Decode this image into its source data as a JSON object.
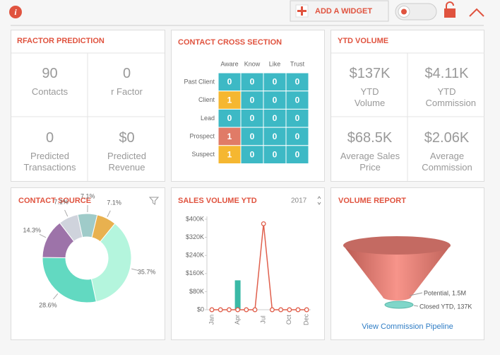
{
  "toolbar": {
    "add_widget": "ADD A WIDGET"
  },
  "rfactor": {
    "title": "RFACTOR PREDICTION",
    "cells": [
      {
        "value": "90",
        "label": "Contacts"
      },
      {
        "value": "0",
        "label": "r Factor"
      },
      {
        "value": "0",
        "label": "Predicted Transactions"
      },
      {
        "value": "$0",
        "label": "Predicted Revenue"
      }
    ]
  },
  "cross": {
    "title": "CONTACT CROSS SECTION",
    "columns": [
      "Aware",
      "Know",
      "Like",
      "Trust"
    ],
    "rows": [
      {
        "label": "Past Client",
        "values": [
          0,
          0,
          0,
          0
        ],
        "colors": [
          "#3db9c5",
          "#3db9c5",
          "#3db9c5",
          "#3db9c5"
        ]
      },
      {
        "label": "Client",
        "values": [
          1,
          0,
          0,
          0
        ],
        "colors": [
          "#f5b731",
          "#3db9c5",
          "#3db9c5",
          "#3db9c5"
        ]
      },
      {
        "label": "Lead",
        "values": [
          0,
          0,
          0,
          0
        ],
        "colors": [
          "#3db9c5",
          "#3db9c5",
          "#3db9c5",
          "#3db9c5"
        ]
      },
      {
        "label": "Prospect",
        "values": [
          1,
          0,
          0,
          0
        ],
        "colors": [
          "#e07b67",
          "#3db9c5",
          "#3db9c5",
          "#3db9c5"
        ]
      },
      {
        "label": "Suspect",
        "values": [
          1,
          0,
          0,
          0
        ],
        "colors": [
          "#f5b731",
          "#3db9c5",
          "#3db9c5",
          "#3db9c5"
        ]
      }
    ]
  },
  "ytd": {
    "title": "YTD VOLUME",
    "cells": [
      {
        "value": "$137K",
        "label": "YTD Volume"
      },
      {
        "value": "$4.11K",
        "label": "YTD Commission"
      },
      {
        "value": "$68.5K",
        "label": "Average Sales Price"
      },
      {
        "value": "$2.06K",
        "label": "Average Commission"
      }
    ]
  },
  "contact_source": {
    "type": "pie",
    "title": "CONTACT SOURCE",
    "values": [
      7.1,
      7.1,
      35.7,
      28.6,
      14.3,
      7.1
    ],
    "value_labels": [
      "7.1%",
      "7.1%",
      "35.7%",
      "28.6%",
      "14.3%",
      "7.1%"
    ],
    "colors": [
      "#9fcbc9",
      "#e8b14f",
      "#b4f5dd",
      "#62d9c1",
      "#9d73a9",
      "#cfd3dc"
    ]
  },
  "sales": {
    "type": "bar_line",
    "title": "SALES VOLUME YTD",
    "year": "2017",
    "categories": [
      "Jan",
      null,
      null,
      "Apr",
      null,
      null,
      "Jul",
      null,
      null,
      "Oct",
      null,
      "Dec"
    ],
    "series": [
      {
        "type": "bar",
        "color": "#3ab9a6",
        "values": [
          0,
          0,
          0,
          130000,
          0,
          0,
          0,
          0,
          0,
          0,
          0,
          0
        ]
      },
      {
        "type": "line",
        "color": "#e0604d",
        "values": [
          0,
          0,
          0,
          0,
          0,
          0,
          380000,
          0,
          0,
          0,
          0,
          0
        ]
      }
    ],
    "ylim": [
      0,
      400000
    ],
    "yticks": [
      {
        "value": 0,
        "label": "$0"
      },
      {
        "value": 80000,
        "label": "$80K"
      },
      {
        "value": 160000,
        "label": "$160K"
      },
      {
        "value": 240000,
        "label": "$240K"
      },
      {
        "value": 320000,
        "label": "$320K"
      },
      {
        "value": 400000,
        "label": "$400K"
      }
    ]
  },
  "volume": {
    "title": "VOLUME REPORT",
    "potential": "Potential, 1.5M",
    "closed": "Closed YTD, 137K",
    "link": "View Commission Pipeline"
  }
}
